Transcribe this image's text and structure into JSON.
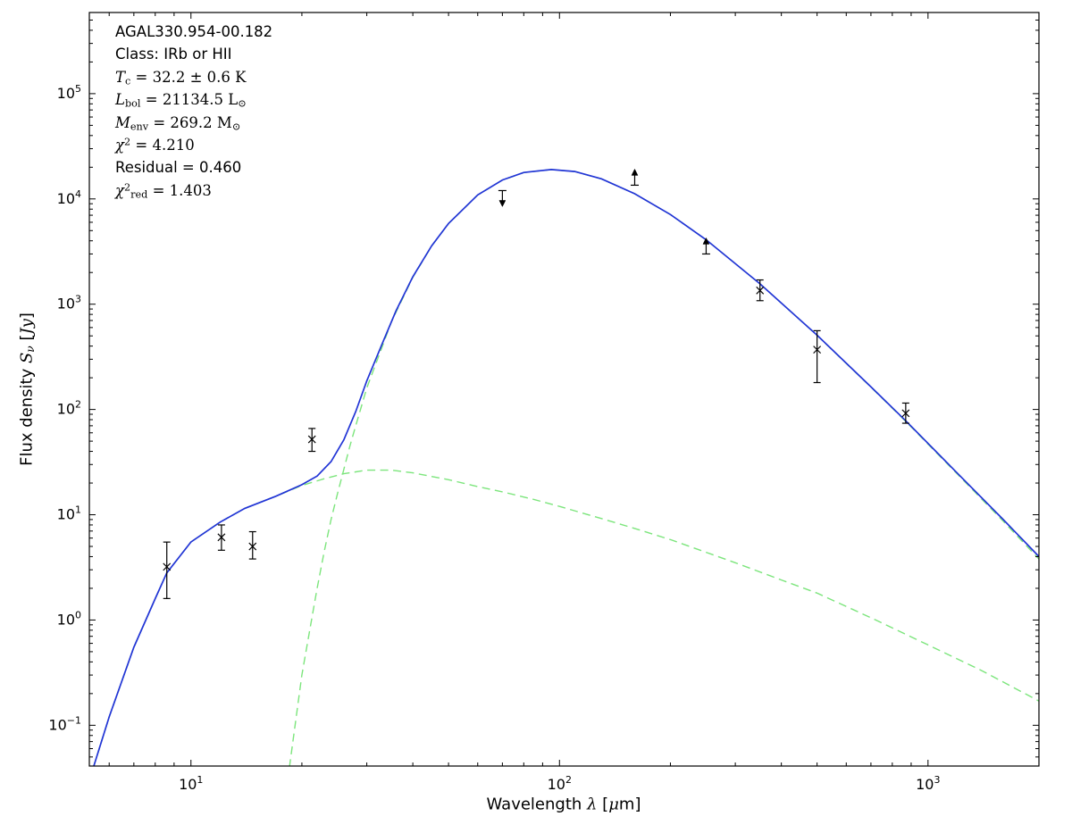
{
  "figure": {
    "background": "#ffffff",
    "frame_color": "#000000",
    "model_color": "#2134d6",
    "component_color": "#7ce57c",
    "marker_color": "#000000"
  },
  "annotation": {
    "lines": [
      [
        {
          "s": "sans",
          "t": "AGAL330.954-00.182"
        }
      ],
      [
        {
          "s": "sans",
          "t": "Class: IRb or HII"
        }
      ],
      [
        {
          "s": "it",
          "t": "T"
        },
        {
          "s": "sub",
          "t": "c"
        },
        {
          "s": "rm",
          "t": " = 32.2 ± 0.6 K"
        }
      ],
      [
        {
          "s": "it",
          "t": "L"
        },
        {
          "s": "sub",
          "t": "bol"
        },
        {
          "s": "rm",
          "t": " = 21134.5 L"
        },
        {
          "s": "sub",
          "t": "⊙"
        }
      ],
      [
        {
          "s": "it",
          "t": "M"
        },
        {
          "s": "sub",
          "t": "env"
        },
        {
          "s": "rm",
          "t": " = 269.2 M"
        },
        {
          "s": "sub",
          "t": "⊙"
        }
      ],
      [
        {
          "s": "it",
          "t": "χ"
        },
        {
          "s": "sup",
          "t": "2"
        },
        {
          "s": "rm",
          "t": " = 4.210"
        }
      ],
      [
        {
          "s": "sans",
          "t": "Residual = 0.460"
        }
      ],
      [
        {
          "s": "it",
          "t": "χ"
        },
        {
          "s": "sup",
          "t": "2"
        },
        {
          "s": "sub",
          "t": "red"
        },
        {
          "s": "rm",
          "t": " = 1.403"
        }
      ]
    ]
  },
  "axes_labels": {
    "x": [
      {
        "s": "sans",
        "t": "Wavelength "
      },
      {
        "s": "it",
        "t": "λ"
      },
      {
        "s": "sans",
        "t": " ["
      },
      {
        "s": "it",
        "t": "μ"
      },
      {
        "s": "sans",
        "t": "m]"
      }
    ],
    "y": [
      {
        "s": "sans",
        "t": "Flux density "
      },
      {
        "s": "it",
        "t": "S"
      },
      {
        "s": "subit",
        "t": "ν"
      },
      {
        "s": "sans",
        "t": " ["
      },
      {
        "s": "it",
        "t": "Jy"
      },
      {
        "s": "sans",
        "t": "]"
      }
    ]
  },
  "chart_data": {
    "type": "line",
    "title": "",
    "xlabel": "Wavelength λ [μm]",
    "ylabel": "Flux density Sν [Jy]",
    "xscale": "log",
    "yscale": "log",
    "xlim": [
      5.3,
      2000
    ],
    "ylim": [
      0.041,
      590000
    ],
    "grid": false,
    "legend": null,
    "x_ticks": [
      {
        "v": 10,
        "exp": "1"
      },
      {
        "v": 100,
        "exp": "2"
      },
      {
        "v": 1000,
        "exp": "3"
      }
    ],
    "y_ticks": [
      {
        "v": 0.1,
        "exp": "−1"
      },
      {
        "v": 1,
        "exp": "0"
      },
      {
        "v": 10,
        "exp": "1"
      },
      {
        "v": 100,
        "exp": "2"
      },
      {
        "v": 1000,
        "exp": "3"
      },
      {
        "v": 10000,
        "exp": "4"
      },
      {
        "v": 100000,
        "exp": "5"
      }
    ],
    "series": [
      {
        "name": "total_model",
        "style": "solid",
        "color": "#2134d6",
        "x": [
          5.3,
          6,
          7,
          8,
          8.6,
          10,
          12,
          14,
          17,
          20,
          22,
          24,
          26,
          28,
          30,
          33,
          36,
          40,
          45,
          50,
          60,
          70,
          80,
          95,
          110,
          130,
          160,
          200,
          250,
          350,
          500,
          700,
          870,
          1200,
          1600,
          2000
        ],
        "y": [
          0.03,
          0.12,
          0.55,
          1.6,
          2.8,
          5.5,
          8.5,
          11.5,
          15.0,
          19.3,
          23.3,
          32,
          51.5,
          95.5,
          187,
          419,
          860,
          1822,
          3590,
          5850,
          10920,
          15120,
          17810,
          19010,
          18210,
          15510,
          11210,
          7110,
          4100,
          1560,
          508,
          164,
          78,
          24.9,
          9.0,
          4.0
        ]
      },
      {
        "name": "warm_component",
        "style": "dashed",
        "color": "#7ce57c",
        "x": [
          5.3,
          6,
          7,
          8,
          8.6,
          10,
          12,
          14,
          17,
          20,
          23,
          26,
          30,
          35,
          40,
          50,
          60,
          70,
          85,
          100,
          130,
          160,
          200,
          250,
          300,
          400,
          500,
          700,
          1000,
          1400,
          2000
        ],
        "y": [
          0.03,
          0.12,
          0.55,
          1.6,
          2.8,
          5.5,
          8.5,
          11.5,
          15.0,
          19.0,
          22.0,
          24.5,
          26.5,
          26.5,
          25.0,
          21.5,
          18.5,
          16.5,
          14.0,
          12.0,
          9.2,
          7.4,
          5.8,
          4.4,
          3.5,
          2.4,
          1.8,
          1.05,
          0.58,
          0.33,
          0.17
        ]
      },
      {
        "name": "cold_envelope_component",
        "style": "dashed",
        "color": "#7ce57c",
        "x": [
          18.5,
          20,
          21,
          22,
          23,
          24,
          25,
          26,
          27,
          28,
          30,
          33,
          35,
          40,
          45,
          50,
          60,
          70,
          80,
          95,
          110,
          130,
          160,
          200,
          250,
          350,
          500,
          700,
          870,
          1200,
          1600,
          2000
        ],
        "y": [
          0.04,
          0.3,
          0.8,
          2.0,
          4.5,
          9,
          16,
          27,
          45,
          70,
          160,
          392,
          682,
          1797,
          3565,
          5830,
          10900,
          15100,
          17800,
          19000,
          18200,
          15500,
          11200,
          7100,
          4100,
          1560,
          506,
          163,
          77,
          24.4,
          8.7,
          3.8
        ]
      }
    ],
    "points": [
      {
        "x": 8.6,
        "y": 3.2,
        "ylo": 1.6,
        "yhi": 5.5,
        "marker": "x"
      },
      {
        "x": 12.1,
        "y": 6.1,
        "ylo": 4.6,
        "yhi": 8.0,
        "marker": "x"
      },
      {
        "x": 14.7,
        "y": 5.0,
        "ylo": 3.8,
        "yhi": 6.9,
        "marker": "x"
      },
      {
        "x": 21.3,
        "y": 52,
        "ylo": 40,
        "yhi": 66,
        "marker": "x"
      },
      {
        "x": 70,
        "y": 12000,
        "marker": "upper_limit"
      },
      {
        "x": 160,
        "y": 13500,
        "marker": "lower_limit"
      },
      {
        "x": 250,
        "y": 3000,
        "marker": "lower_limit"
      },
      {
        "x": 350,
        "y": 1350,
        "ylo": 1080,
        "yhi": 1700,
        "marker": "x"
      },
      {
        "x": 500,
        "y": 370,
        "ylo": 180,
        "yhi": 560,
        "marker": "x"
      },
      {
        "x": 870,
        "y": 92,
        "ylo": 74,
        "yhi": 115,
        "marker": "x"
      }
    ]
  }
}
